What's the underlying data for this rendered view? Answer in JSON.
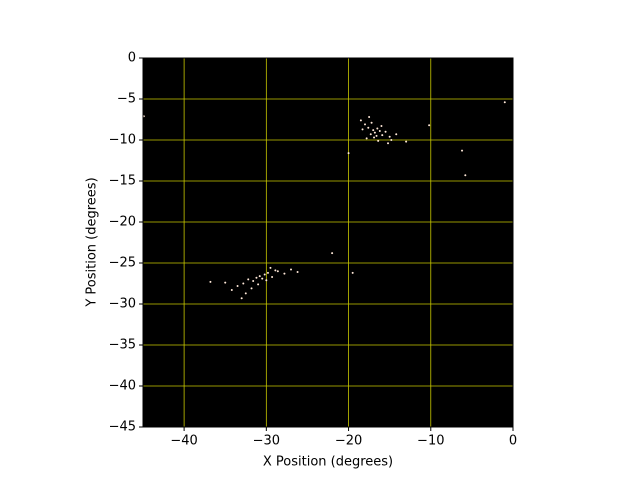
{
  "chart_data": {
    "type": "scatter",
    "x_label": "X Position (degrees)",
    "y_label": "Y Position (degrees)",
    "background": "#000000",
    "grid": true,
    "grid_color": "#c8c800",
    "xlim": [
      -45,
      0
    ],
    "ylim": [
      -45,
      0
    ],
    "xticks": [
      {
        "value": -40,
        "label": "−40"
      },
      {
        "value": -30,
        "label": "−30"
      },
      {
        "value": -20,
        "label": "−20"
      },
      {
        "value": -10,
        "label": "−10"
      },
      0
    ],
    "yticks": [
      {
        "value": -45,
        "label": "−45"
      },
      {
        "value": -40,
        "label": "−40"
      },
      {
        "value": -35,
        "label": "−35"
      },
      {
        "value": -30,
        "label": "−30"
      },
      {
        "value": -25,
        "label": "−25"
      },
      {
        "value": -20,
        "label": "−20"
      },
      {
        "value": -15,
        "label": "−15"
      },
      {
        "value": -10,
        "label": "−10"
      },
      {
        "value": -5,
        "label": "−5"
      },
      0
    ],
    "series": [
      {
        "color": "#ffe8d8",
        "x": [
          -1.0,
          -10.2,
          -20.0,
          -6.2,
          -5.8,
          -13.0,
          -44.9,
          -19.5,
          -22.0,
          -17.0,
          -16.8,
          -16.5,
          -17.3,
          -16.2,
          -17.6,
          -15.9,
          -16.9,
          -18.0,
          -15.5,
          -17.8,
          -16.4,
          -15.0,
          -14.2,
          -18.5,
          -16.0,
          -17.2,
          -15.2,
          -14.8,
          -16.6,
          -18.3,
          -17.5,
          -30.8,
          -30.5,
          -31.2,
          -30.2,
          -31.6,
          -29.8,
          -32.2,
          -29.3,
          -32.8,
          -28.6,
          -33.5,
          -27.8,
          -34.2,
          -27.0,
          -35.0,
          -26.2,
          -36.8,
          -31.0,
          -30.0,
          -32.5,
          -28.9,
          -33.0,
          -29.5,
          -31.8
        ],
        "y": [
          -5.4,
          -8.2,
          -11.6,
          -11.3,
          -14.3,
          -10.2,
          -7.1,
          -26.2,
          -23.8,
          -8.8,
          -9.1,
          -8.6,
          -9.3,
          -8.9,
          -8.5,
          -9.4,
          -9.7,
          -8.1,
          -9.0,
          -9.8,
          -10.1,
          -9.6,
          -9.3,
          -7.6,
          -8.3,
          -7.9,
          -10.4,
          -10.0,
          -9.5,
          -8.7,
          -7.2,
          -26.6,
          -26.9,
          -26.8,
          -26.4,
          -27.2,
          -26.2,
          -27.0,
          -26.7,
          -27.5,
          -26.0,
          -27.8,
          -26.3,
          -28.3,
          -25.8,
          -27.4,
          -26.1,
          -27.3,
          -27.6,
          -27.1,
          -28.7,
          -25.9,
          -29.3,
          -25.6,
          -28.1
        ]
      }
    ]
  }
}
